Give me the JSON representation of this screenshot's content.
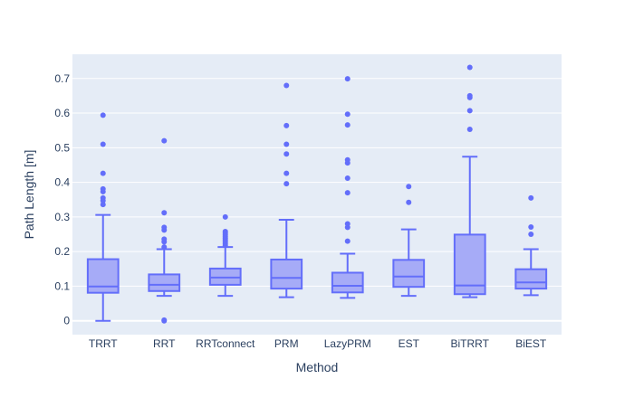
{
  "chart_data": {
    "type": "box",
    "xlabel": "Method",
    "ylabel": "Path Length [m]",
    "ylim": [
      -0.04,
      0.77
    ],
    "yticks": [
      0,
      0.1,
      0.2,
      0.3,
      0.4,
      0.5,
      0.6,
      0.7
    ],
    "ytick_labels": [
      "0",
      "0.1",
      "0.2",
      "0.3",
      "0.4",
      "0.5",
      "0.6",
      "0.7"
    ],
    "grid": true,
    "colors": {
      "plot_bg": "#e5ecf6",
      "grid": "#ffffff",
      "box_line": "#636efa",
      "box_fill": "#a6abf7",
      "outlier": "#636efa"
    },
    "categories": [
      "TRRT",
      "RRT",
      "RRTconnect",
      "PRM",
      "LazyPRM",
      "EST",
      "BiTRRT",
      "BiEST"
    ],
    "boxes": [
      {
        "min": 0.0,
        "q1": 0.081,
        "median": 0.099,
        "q3": 0.178,
        "max": 0.306,
        "outliers": [
          0.336,
          0.347,
          0.355,
          0.373,
          0.381,
          0.426,
          0.51,
          0.594
        ]
      },
      {
        "min": 0.072,
        "q1": 0.086,
        "median": 0.104,
        "q3": 0.134,
        "max": 0.207,
        "outliers": [
          0.0,
          0.002,
          0.213,
          0.228,
          0.236,
          0.262,
          0.27,
          0.312,
          0.52
        ]
      },
      {
        "min": 0.072,
        "q1": 0.104,
        "median": 0.125,
        "q3": 0.151,
        "max": 0.213,
        "outliers": [
          0.218,
          0.223,
          0.228,
          0.233,
          0.238,
          0.243,
          0.248,
          0.253,
          0.258,
          0.3
        ]
      },
      {
        "min": 0.068,
        "q1": 0.093,
        "median": 0.124,
        "q3": 0.177,
        "max": 0.292,
        "outliers": [
          0.396,
          0.426,
          0.482,
          0.51,
          0.564,
          0.68
        ]
      },
      {
        "min": 0.066,
        "q1": 0.082,
        "median": 0.101,
        "q3": 0.139,
        "max": 0.194,
        "outliers": [
          0.23,
          0.27,
          0.28,
          0.37,
          0.412,
          0.456,
          0.465,
          0.566,
          0.597,
          0.699
        ]
      },
      {
        "min": 0.072,
        "q1": 0.098,
        "median": 0.128,
        "q3": 0.176,
        "max": 0.264,
        "outliers": [
          0.342,
          0.388
        ]
      },
      {
        "min": 0.068,
        "q1": 0.077,
        "median": 0.102,
        "q3": 0.249,
        "max": 0.474,
        "outliers": [
          0.553,
          0.607,
          0.645,
          0.65,
          0.732
        ]
      },
      {
        "min": 0.074,
        "q1": 0.093,
        "median": 0.111,
        "q3": 0.149,
        "max": 0.207,
        "outliers": [
          0.25,
          0.271,
          0.355
        ]
      }
    ]
  }
}
